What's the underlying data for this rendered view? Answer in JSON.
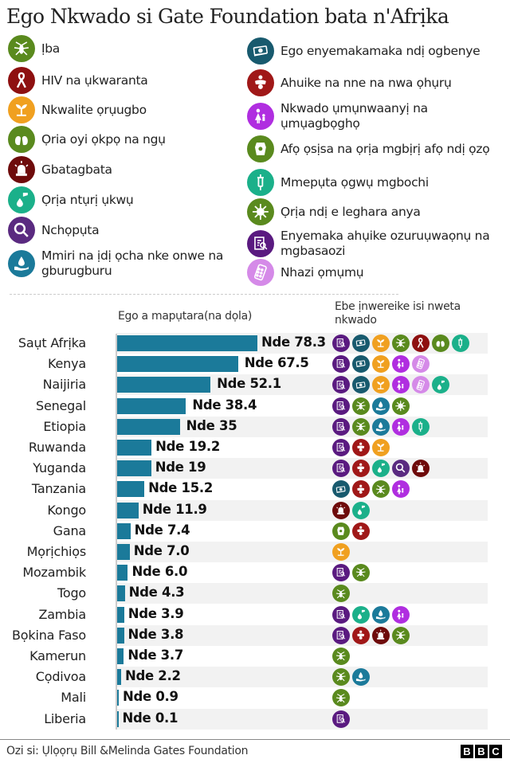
{
  "title": "Ego Nkwado si Gate Foundation bata n'Afrịka",
  "icon_types": {
    "malaria": {
      "color": "#5a8a1e",
      "glyph": "mosquito"
    },
    "hiv": {
      "color": "#8e1010",
      "glyph": "ribbon"
    },
    "agriculture": {
      "color": "#f0a020",
      "glyph": "plant"
    },
    "pneumonia": {
      "color": "#5a8a1e",
      "glyph": "lungs"
    },
    "emergency": {
      "color": "#6e0b0b",
      "glyph": "siren"
    },
    "diarrhoea": {
      "color": "#1bb08a",
      "glyph": "drop-tap"
    },
    "research": {
      "color": "#5a2a80",
      "glyph": "magnifier"
    },
    "water": {
      "color": "#1b7a9a",
      "glyph": "hand-drop"
    },
    "finance": {
      "color": "#185a6e",
      "glyph": "money"
    },
    "maternal": {
      "color": "#a01818",
      "glyph": "mother-baby"
    },
    "gender": {
      "color": "#b02ee0",
      "glyph": "woman-child"
    },
    "hiv_tb": {
      "color": "#5a8a1e",
      "glyph": "body"
    },
    "vaccine": {
      "color": "#1bb08a",
      "glyph": "syringe"
    },
    "ntd": {
      "color": "#5a8a1e",
      "glyph": "virus"
    },
    "data": {
      "color": "#5a1a80",
      "glyph": "report"
    },
    "family_planning": {
      "color": "#d58ae8",
      "glyph": "pills"
    }
  },
  "legend": [
    {
      "key": "malaria",
      "label": "Ịba"
    },
    {
      "key": "hiv",
      "label": "HIV na ụkwaranta"
    },
    {
      "key": "agriculture",
      "label": "Nkwalite ọrụugbo"
    },
    {
      "key": "pneumonia",
      "label": "Ọria oyi ọkpọ na ngụ"
    },
    {
      "key": "emergency",
      "label": "Gbatagbata"
    },
    {
      "key": "diarrhoea",
      "label": "Ọrịa ntụrị ụkwụ"
    },
    {
      "key": "research",
      "label": "Nchọpụta"
    },
    {
      "key": "water",
      "label": "Mmiri na ịdị ọcha nke onwe na gburugburu"
    },
    {
      "key": "finance",
      "label": "Ego enyemakamaka ndị ogbenye"
    },
    {
      "key": "maternal",
      "label": "Ahuike na nne na nwa ọhụrụ"
    },
    {
      "key": "gender",
      "label": "Nkwado ụmụnwaanyị na ụmụagbọghọ"
    },
    {
      "key": "hiv_tb",
      "label": "Afọ ọsịsa na ọrịa mgbịrị afọ ndị ọzọ"
    },
    {
      "key": "vaccine",
      "label": "Mmepụta ọgwụ mgbochi"
    },
    {
      "key": "ntd",
      "label": "Ọrịa ndị e leghara anya"
    },
    {
      "key": "data",
      "label": "Enyemaka ahụike ozuruụwaọnụ na mgbasaozi"
    },
    {
      "key": "family_planning",
      "label": "Nhazi ọmụmụ"
    }
  ],
  "column_headers": {
    "amount": "Ego a mapụtara(na dọla)",
    "areas": "Ebe ịnwereike isi nweta nkwado"
  },
  "chart_data": {
    "type": "bar",
    "orientation": "horizontal",
    "title": "Ego Nkwado si Gate Foundation bata n'Afrịka",
    "xlabel": "Ego a mapụtara(na dọla)",
    "ylabel": "",
    "value_prefix": "Nde ",
    "bar_color": "#1b7a9a",
    "categories": [
      "Saụt Afrịka",
      "Kenya",
      "Naijiria",
      "Senegal",
      "Etiopia",
      "Ruwanda",
      "Yuganda",
      "Tanzania",
      "Kongo",
      "Gana",
      "Mọrịchiọs",
      "Mozambik",
      "Togo",
      "Zambia",
      "Bọkina Faso",
      "Kamerun",
      "Cọdivoa",
      "Mali",
      "Liberia"
    ],
    "values": [
      78.3,
      67.5,
      52.1,
      38.4,
      35,
      19.2,
      19,
      15.2,
      11.9,
      7.4,
      7.0,
      6.0,
      4.3,
      3.9,
      3.8,
      3.7,
      2.2,
      0.9,
      0.1
    ],
    "value_labels": [
      "Nde 78.3",
      "Nde 67.5",
      "Nde 52.1",
      "Nde 38.4",
      "Nde 35",
      "Nde 19.2",
      "Nde 19",
      "Nde 15.2",
      "Nde 11.9",
      "Nde 7.4",
      "Nde 7.0",
      "Nde 6.0",
      "Nde 4.3",
      "Nde 3.9",
      "Nde 3.8",
      "Nde 3.7",
      "Nde 2.2",
      "Nde 0.9",
      "Nde 0.1"
    ],
    "focus_areas": [
      [
        "data",
        "finance",
        "agriculture",
        "malaria",
        "hiv",
        "pneumonia",
        "vaccine"
      ],
      [
        "data",
        "finance",
        "agriculture",
        "gender",
        "family_planning"
      ],
      [
        "data",
        "finance",
        "agriculture",
        "gender",
        "family_planning",
        "diarrhoea"
      ],
      [
        "data",
        "malaria",
        "water",
        "ntd"
      ],
      [
        "data",
        "malaria",
        "water",
        "gender",
        "vaccine"
      ],
      [
        "data",
        "maternal",
        "agriculture"
      ],
      [
        "data",
        "maternal",
        "diarrhoea",
        "research",
        "emergency"
      ],
      [
        "finance",
        "maternal",
        "malaria",
        "gender"
      ],
      [
        "emergency",
        "diarrhoea"
      ],
      [
        "hiv_tb",
        "maternal"
      ],
      [
        "agriculture"
      ],
      [
        "data",
        "malaria"
      ],
      [
        "malaria"
      ],
      [
        "data",
        "diarrhoea",
        "water",
        "gender"
      ],
      [
        "data",
        "maternal",
        "emergency",
        "malaria"
      ],
      [
        "malaria"
      ],
      [
        "malaria",
        "water"
      ],
      [
        "malaria"
      ],
      [
        "data"
      ]
    ],
    "xlim": [
      0,
      80
    ],
    "grid": false,
    "legend_position": "top"
  },
  "footer": {
    "source": "Ozi si: Ụlọọrụ Bill &Melinda Gates Foundation",
    "logo": [
      "B",
      "B",
      "C"
    ]
  }
}
